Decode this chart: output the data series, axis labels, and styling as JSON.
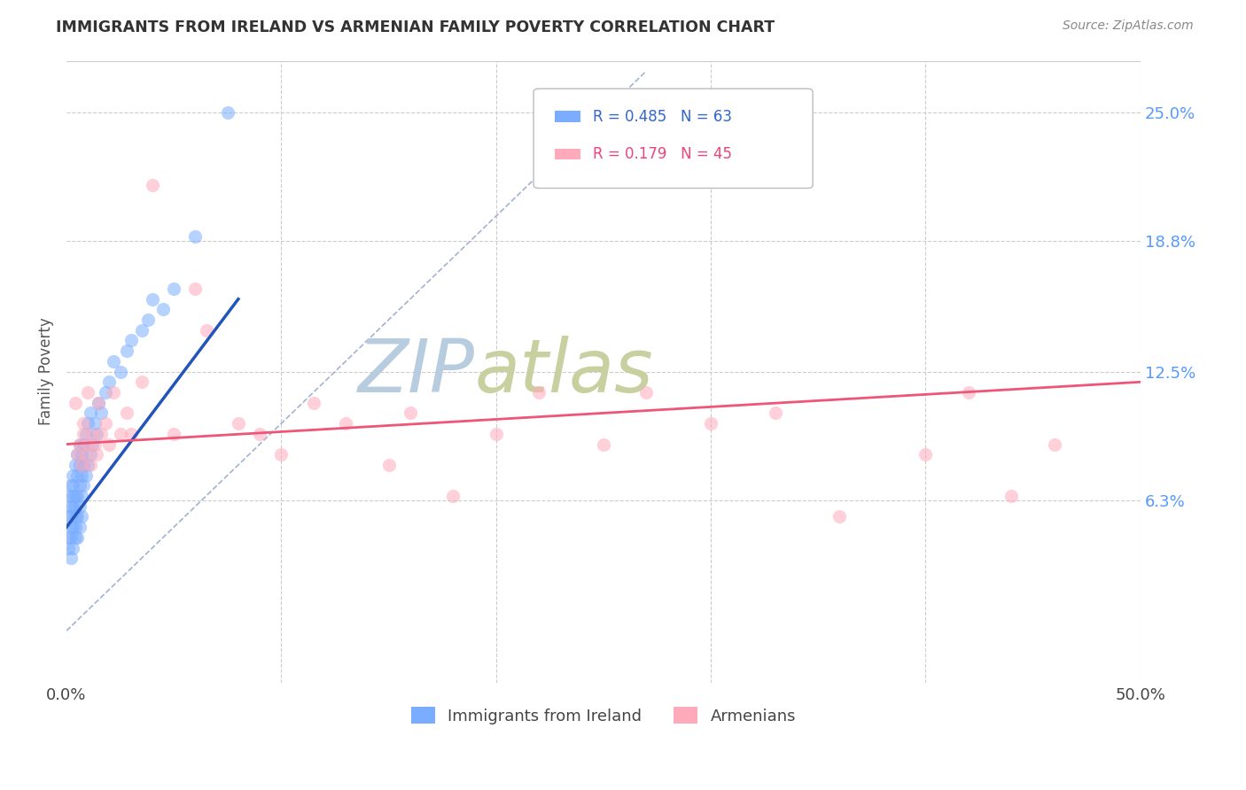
{
  "title": "IMMIGRANTS FROM IRELAND VS ARMENIAN FAMILY POVERTY CORRELATION CHART",
  "source": "Source: ZipAtlas.com",
  "ylabel": "Family Poverty",
  "right_yticks": [
    "25.0%",
    "18.8%",
    "12.5%",
    "6.3%"
  ],
  "right_ytick_vals": [
    0.25,
    0.188,
    0.125,
    0.063
  ],
  "legend_r1": "R = 0.485",
  "legend_n1": "N = 63",
  "legend_r2": "R = 0.179",
  "legend_n2": "N = 45",
  "xmin": 0.0,
  "xmax": 0.5,
  "ymin": -0.025,
  "ymax": 0.275,
  "ireland_color": "#7aadff",
  "armenian_color": "#ffaabb",
  "ireland_trend_color": "#2255bb",
  "armenian_trend_color": "#ee5577",
  "dashed_line_color": "#99aacc",
  "watermark_zip_color": "#b0c4d8",
  "watermark_atlas_color": "#c8d8a0",
  "ireland_x": [
    0.001,
    0.001,
    0.001,
    0.001,
    0.002,
    0.002,
    0.002,
    0.002,
    0.002,
    0.002,
    0.003,
    0.003,
    0.003,
    0.003,
    0.003,
    0.003,
    0.004,
    0.004,
    0.004,
    0.004,
    0.004,
    0.004,
    0.005,
    0.005,
    0.005,
    0.005,
    0.005,
    0.006,
    0.006,
    0.006,
    0.006,
    0.006,
    0.007,
    0.007,
    0.007,
    0.007,
    0.008,
    0.008,
    0.008,
    0.009,
    0.009,
    0.01,
    0.01,
    0.011,
    0.011,
    0.012,
    0.013,
    0.014,
    0.015,
    0.016,
    0.018,
    0.02,
    0.022,
    0.025,
    0.028,
    0.03,
    0.035,
    0.038,
    0.04,
    0.045,
    0.05,
    0.06,
    0.075
  ],
  "ireland_y": [
    0.04,
    0.055,
    0.065,
    0.045,
    0.05,
    0.06,
    0.07,
    0.035,
    0.045,
    0.055,
    0.06,
    0.04,
    0.05,
    0.07,
    0.075,
    0.065,
    0.045,
    0.055,
    0.065,
    0.05,
    0.06,
    0.08,
    0.055,
    0.065,
    0.075,
    0.045,
    0.085,
    0.06,
    0.07,
    0.05,
    0.08,
    0.09,
    0.065,
    0.075,
    0.055,
    0.085,
    0.07,
    0.08,
    0.09,
    0.075,
    0.095,
    0.08,
    0.1,
    0.085,
    0.105,
    0.09,
    0.1,
    0.095,
    0.11,
    0.105,
    0.115,
    0.12,
    0.13,
    0.125,
    0.135,
    0.14,
    0.145,
    0.15,
    0.16,
    0.155,
    0.165,
    0.19,
    0.25
  ],
  "armenian_x": [
    0.004,
    0.005,
    0.006,
    0.007,
    0.008,
    0.008,
    0.009,
    0.01,
    0.01,
    0.011,
    0.012,
    0.013,
    0.014,
    0.015,
    0.016,
    0.018,
    0.02,
    0.022,
    0.025,
    0.028,
    0.03,
    0.035,
    0.04,
    0.05,
    0.06,
    0.065,
    0.08,
    0.09,
    0.1,
    0.115,
    0.13,
    0.15,
    0.16,
    0.18,
    0.2,
    0.22,
    0.25,
    0.27,
    0.3,
    0.33,
    0.36,
    0.4,
    0.42,
    0.44,
    0.46
  ],
  "armenian_y": [
    0.11,
    0.085,
    0.09,
    0.08,
    0.095,
    0.1,
    0.085,
    0.09,
    0.115,
    0.08,
    0.095,
    0.09,
    0.085,
    0.11,
    0.095,
    0.1,
    0.09,
    0.115,
    0.095,
    0.105,
    0.095,
    0.12,
    0.215,
    0.095,
    0.165,
    0.145,
    0.1,
    0.095,
    0.085,
    0.11,
    0.1,
    0.08,
    0.105,
    0.065,
    0.095,
    0.115,
    0.09,
    0.115,
    0.1,
    0.105,
    0.055,
    0.085,
    0.115,
    0.065,
    0.09
  ],
  "ireland_trend_x0": 0.0,
  "ireland_trend_y0": 0.05,
  "ireland_trend_x1": 0.08,
  "ireland_trend_y1": 0.16,
  "armenian_trend_x0": 0.0,
  "armenian_trend_y0": 0.09,
  "armenian_trend_x1": 0.5,
  "armenian_trend_y1": 0.12
}
